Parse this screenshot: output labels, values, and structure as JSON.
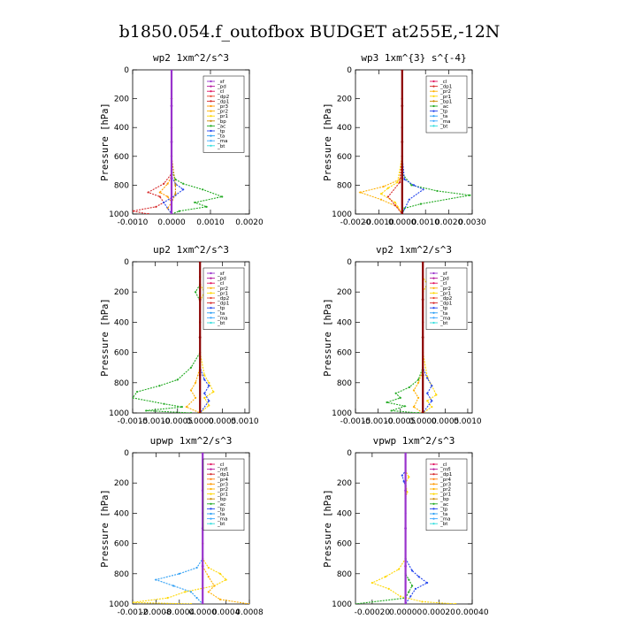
{
  "figure": {
    "title": "b1850.054.f_outofbox  BUDGET at255E,-12N"
  },
  "colors": {
    "sf": "#9933cc",
    "pd": "#b5179e",
    "cl": "#e0115f",
    "mfl": "#b5179e",
    "dp1": "#d62728",
    "dp2": "#e8452c",
    "pr1": "#ffd700",
    "pr2": "#ffb000",
    "pr3": "#ff9900",
    "pr4": "#ff7f0e",
    "bp": "#cc8800",
    "ac": "#22aa22",
    "tp": "#2244ee",
    "ta": "#2a9df4",
    "ma": "#3fa9ff",
    "bt": "#33dddd",
    "mean": "#8b0000"
  },
  "chart_data": [
    {
      "type": "line",
      "title": "wp2   1xm^2/s^3",
      "ylabel": "Pressure [hPa]",
      "ylim": [
        1000,
        0
      ],
      "xlim": [
        -0.001,
        0.002
      ],
      "xticks": [
        -0.001,
        0.0,
        0.001,
        0.002
      ],
      "xtick_labels": [
        "-0.0010",
        "0.0000",
        "0.0010",
        "0.0020"
      ],
      "yticks": [
        0,
        200,
        400,
        600,
        800,
        1000
      ],
      "ytick_labels": [
        "0",
        "200",
        "400",
        "600",
        "800",
        "1000"
      ],
      "legend": [
        "_sf",
        "_pd",
        "_cl",
        "_dp2",
        "_dp1",
        "_pr3",
        "_pr2",
        "_pr1",
        "_bp",
        "_ac",
        "_tp",
        "_ta",
        "_ma",
        "_bt"
      ],
      "legend_placement": "top-right",
      "series": [
        {
          "name": "_ac",
          "color": "ac",
          "x": [
            0,
            0,
            0,
            0,
            0,
            0.0001,
            0.0003,
            0.0008,
            0.0013,
            0.0006,
            0.0009,
            0.0002,
            0
          ],
          "y": [
            0,
            200,
            400,
            600,
            700,
            760,
            790,
            830,
            880,
            920,
            950,
            980,
            1000
          ]
        },
        {
          "name": "_dp1",
          "color": "dp1",
          "x": [
            0,
            0,
            0,
            0,
            0,
            -0.0002,
            -0.0006,
            -0.0003,
            -0.0002,
            -0.0004,
            -0.001,
            -0.0006
          ],
          "y": [
            0,
            200,
            400,
            600,
            720,
            790,
            850,
            880,
            920,
            950,
            980,
            1000
          ]
        },
        {
          "name": "_pr3",
          "color": "pr3",
          "x": [
            0,
            0,
            0,
            0,
            0,
            -0.0001,
            -0.0003,
            -0.0001,
            0,
            -0.0001,
            0
          ],
          "y": [
            0,
            200,
            400,
            600,
            740,
            790,
            850,
            880,
            920,
            960,
            1000
          ]
        },
        {
          "name": "_tp",
          "color": "tp",
          "x": [
            0,
            0,
            0,
            0,
            0,
            0.0001,
            0.0003,
            0.0001,
            -0.0002,
            0
          ],
          "y": [
            0,
            200,
            400,
            600,
            740,
            790,
            830,
            870,
            920,
            1000
          ]
        },
        {
          "name": "_bp",
          "color": "bp",
          "x": [
            0,
            0,
            0,
            0,
            0.0001,
            0.0001,
            0,
            0
          ],
          "y": [
            0,
            200,
            400,
            600,
            800,
            860,
            920,
            1000
          ]
        },
        {
          "name": "_sf",
          "color": "sf",
          "x": [
            0,
            0,
            0,
            0,
            0
          ],
          "y": [
            0,
            250,
            500,
            750,
            1000
          ]
        }
      ]
    },
    {
      "type": "line",
      "title": "wp3   1xm^{3} s^{-4}",
      "ylabel": "Pressure [hPa]",
      "ylim": [
        1000,
        0
      ],
      "xlim": [
        -0.002,
        0.003
      ],
      "xticks": [
        -0.002,
        -0.001,
        0.0,
        0.001,
        0.002,
        0.003
      ],
      "xtick_labels": [
        "-0.0020",
        "-0.0010",
        "0.0000",
        "0.0010",
        "0.0020",
        "0.0030"
      ],
      "yticks": [
        0,
        200,
        400,
        600,
        800,
        1000
      ],
      "ytick_labels": [
        "0",
        "200",
        "400",
        "600",
        "800",
        "1000"
      ],
      "legend": [
        "_cl",
        "_dp1",
        "_pr2",
        "_pr1",
        "_bp1",
        "_ac",
        "_tp",
        "_ta",
        "_ma",
        "_bt"
      ],
      "legend_placement": "top-right",
      "series": [
        {
          "name": "_ac",
          "color": "ac",
          "x": [
            0,
            0,
            0,
            0,
            0,
            0.0004,
            0.0015,
            0.0029,
            0.0008,
            0.0001,
            0
          ],
          "y": [
            0,
            200,
            400,
            600,
            720,
            800,
            840,
            870,
            930,
            960,
            1000
          ]
        },
        {
          "name": "_pr2",
          "color": "pr2",
          "x": [
            0,
            0,
            0,
            0,
            -0.0001,
            -0.0008,
            -0.0018,
            -0.0009,
            -0.0002,
            0
          ],
          "y": [
            0,
            200,
            400,
            600,
            760,
            810,
            850,
            900,
            950,
            1000
          ]
        },
        {
          "name": "_pr1",
          "color": "pr1",
          "x": [
            0,
            0,
            0,
            0,
            -0.0002,
            -0.0006,
            -0.0009,
            -0.0003,
            0
          ],
          "y": [
            0,
            200,
            400,
            600,
            780,
            820,
            860,
            920,
            1000
          ]
        },
        {
          "name": "_tp",
          "color": "tp",
          "x": [
            0,
            0,
            0,
            0,
            0.0001,
            0.0005,
            0.0009,
            0.0003,
            0
          ],
          "y": [
            0,
            200,
            400,
            600,
            760,
            800,
            830,
            900,
            1000
          ]
        },
        {
          "name": "_dp1",
          "color": "dp1",
          "x": [
            0,
            0,
            0,
            0,
            -0.0001,
            -0.0006,
            -0.0003,
            0
          ],
          "y": [
            0,
            200,
            400,
            600,
            780,
            880,
            940,
            1000
          ]
        },
        {
          "name": "_cl",
          "color": "mean",
          "x": [
            0,
            0,
            0,
            0,
            0
          ],
          "y": [
            0,
            250,
            500,
            750,
            1000
          ]
        }
      ]
    },
    {
      "type": "line",
      "title": "up2   1xm^2/s^3",
      "ylabel": "Pressure [hPa]",
      "ylim": [
        1000,
        0
      ],
      "xlim": [
        -0.0015,
        0.0011
      ],
      "xticks": [
        -0.0015,
        -0.001,
        -0.0005,
        0.0,
        0.0005,
        0.001
      ],
      "xtick_labels": [
        "-0.0015",
        "-0.0010",
        "-0.0005",
        "0.0000",
        "0.0005",
        "0.0010"
      ],
      "yticks": [
        0,
        200,
        400,
        600,
        800,
        1000
      ],
      "ytick_labels": [
        "0",
        "200",
        "400",
        "600",
        "800",
        "1000"
      ],
      "legend": [
        "_sf",
        "_pd",
        "_cl",
        "_pr2",
        "_pr1",
        "_dp2",
        "_dp1",
        "_tp",
        "_ta",
        "_ma",
        "_bt"
      ],
      "legend_placement": "top-right",
      "series": [
        {
          "name": "_dp2",
          "color": "ac",
          "x": [
            0,
            0,
            0,
            -0.0001,
            0,
            0,
            0,
            -0.0002,
            -0.0005,
            -0.0009,
            -0.0014,
            -0.0015,
            -0.0008,
            -0.0004,
            -0.0012,
            -0.0002
          ],
          "y": [
            0,
            100,
            150,
            200,
            260,
            400,
            600,
            700,
            780,
            820,
            860,
            900,
            940,
            960,
            985,
            1000
          ]
        },
        {
          "name": "_pr1",
          "color": "pr1",
          "x": [
            0,
            0,
            0,
            0.0001,
            0,
            0,
            0,
            0.0001,
            0.0002,
            0.0003,
            0.0001,
            0.0002,
            0
          ],
          "y": [
            0,
            100,
            150,
            200,
            260,
            400,
            600,
            750,
            800,
            860,
            900,
            950,
            1000
          ]
        },
        {
          "name": "_tp",
          "color": "tp",
          "x": [
            0,
            0,
            0,
            0.0001,
            0.0002,
            0.0001,
            0.0002,
            0
          ],
          "y": [
            0,
            400,
            700,
            780,
            820,
            870,
            920,
            1000
          ]
        },
        {
          "name": "_pr2",
          "color": "pr2",
          "x": [
            0,
            0,
            0,
            -0.0001,
            -0.0002,
            -0.0001,
            -0.0003,
            0
          ],
          "y": [
            0,
            400,
            700,
            800,
            850,
            900,
            960,
            1000
          ]
        },
        {
          "name": "_sf",
          "color": "mean",
          "x": [
            0,
            0,
            0,
            0,
            0
          ],
          "y": [
            0,
            250,
            500,
            750,
            1000
          ]
        }
      ]
    },
    {
      "type": "line",
      "title": "vp2   1xm^2/s^3",
      "ylabel": "Pressure [hPa]",
      "ylim": [
        1000,
        0
      ],
      "xlim": [
        -0.0015,
        0.0011
      ],
      "xticks": [
        -0.0015,
        -0.001,
        -0.0005,
        0.0,
        0.0005,
        0.001
      ],
      "xtick_labels": [
        "-0.0015",
        "-0.0010",
        "-0.0005",
        "0.0000",
        "0.0005",
        "0.0010"
      ],
      "yticks": [
        0,
        200,
        400,
        600,
        800,
        1000
      ],
      "ytick_labels": [
        "0",
        "200",
        "400",
        "600",
        "800",
        "1000"
      ],
      "legend": [
        "_sf",
        "_pd",
        "_cl",
        "_pr2",
        "_pr1",
        "_dp2",
        "_dp1",
        "_tp",
        "_ta",
        "_ma",
        "_bt"
      ],
      "legend_placement": "top-right",
      "series": [
        {
          "name": "_dp2",
          "color": "ac",
          "x": [
            0,
            0,
            0,
            -0.0001,
            -0.0003,
            -0.0006,
            -0.0005,
            -0.0008,
            -0.0004,
            -0.0007,
            -0.0001
          ],
          "y": [
            0,
            400,
            700,
            780,
            830,
            870,
            900,
            930,
            955,
            985,
            1000
          ]
        },
        {
          "name": "_pr1",
          "color": "pr1",
          "x": [
            0,
            0,
            0.0001,
            0,
            0,
            0,
            0.0001,
            0.0002,
            0.0003,
            0.0001,
            0.0002,
            0
          ],
          "y": [
            0,
            100,
            150,
            200,
            300,
            600,
            760,
            820,
            880,
            920,
            960,
            1000
          ]
        },
        {
          "name": "_tp",
          "color": "tp",
          "x": [
            0,
            0,
            0,
            0.0001,
            0.0002,
            0.0001,
            0.0002,
            0
          ],
          "y": [
            0,
            400,
            700,
            770,
            820,
            870,
            920,
            1000
          ]
        },
        {
          "name": "_pr2",
          "color": "pr2",
          "x": [
            0,
            0,
            0,
            -0.0001,
            -0.0002,
            -0.0001,
            -0.0002,
            0
          ],
          "y": [
            0,
            400,
            720,
            800,
            850,
            900,
            960,
            1000
          ]
        },
        {
          "name": "_sf",
          "color": "mean",
          "x": [
            0,
            0,
            0,
            0,
            0
          ],
          "y": [
            0,
            250,
            500,
            750,
            1000
          ]
        }
      ]
    },
    {
      "type": "line",
      "title": "upwp   1xm^2/s^3",
      "ylabel": "Pressure [hPa]",
      "ylim": [
        1000,
        0
      ],
      "xlim": [
        -0.0012,
        0.0008
      ],
      "xticks": [
        -0.0012,
        -0.0008,
        -0.0004,
        0.0,
        0.0004,
        0.0008
      ],
      "xtick_labels": [
        "-0.0012",
        "-0.0008",
        "-0.0004",
        "0.0000",
        "0.0004",
        "0.0008"
      ],
      "yticks": [
        0,
        200,
        400,
        600,
        800,
        1000
      ],
      "ytick_labels": [
        "0",
        "200",
        "400",
        "600",
        "800",
        "1000"
      ],
      "legend": [
        "_cl",
        "_mfl",
        "_dp1",
        "_pr4",
        "_pr3",
        "_pr2",
        "_pr1",
        "_bp",
        "_ac",
        "_tp",
        "_ta",
        "_ma",
        "_bt"
      ],
      "legend_placement": "top-right",
      "series": [
        {
          "name": "_ta",
          "color": "ta",
          "x": [
            0,
            0,
            0,
            0,
            -0.0001,
            -0.0004,
            -0.0008,
            -0.0005,
            -0.0002,
            -0.0001,
            0
          ],
          "y": [
            0,
            400,
            600,
            700,
            760,
            800,
            840,
            880,
            920,
            960,
            1000
          ]
        },
        {
          "name": "_pr1",
          "color": "pr1",
          "x": [
            0,
            0,
            0,
            0,
            0.0001,
            0.0003,
            0.0004,
            0.0002,
            -0.0003,
            -0.0006,
            -0.0012,
            -0.0002
          ],
          "y": [
            0,
            400,
            600,
            700,
            760,
            800,
            840,
            880,
            920,
            960,
            990,
            1000
          ]
        },
        {
          "name": "_pr2",
          "color": "pr2",
          "x": [
            0,
            0,
            0,
            0.0001,
            0.0002,
            0.0001,
            0.0003,
            0.0008
          ],
          "y": [
            0,
            600,
            750,
            820,
            880,
            920,
            970,
            1000
          ]
        },
        {
          "name": "_cl",
          "color": "sf",
          "x": [
            0,
            0,
            0,
            0,
            0
          ],
          "y": [
            0,
            250,
            500,
            750,
            1000
          ]
        }
      ]
    },
    {
      "type": "line",
      "title": "vpwp   1xm^2/s^3",
      "ylabel": "Pressure [hPa]",
      "ylim": [
        1000,
        0
      ],
      "xlim": [
        -0.0003,
        0.0004
      ],
      "xticks": [
        -0.0002,
        0.0,
        0.0002,
        0.0004
      ],
      "xtick_labels": [
        "-0.00020",
        "0.00000",
        "0.00020",
        "0.00040"
      ],
      "yticks": [
        0,
        200,
        400,
        600,
        800,
        1000
      ],
      "ytick_labels": [
        "0",
        "200",
        "400",
        "600",
        "800",
        "1000"
      ],
      "legend": [
        "_cl",
        "_mfl",
        "_dp1",
        "_pr4",
        "_pr3",
        "_pr2",
        "_pr1",
        "_bp",
        "_ac",
        "_tp",
        "_ta",
        "_ma",
        "_bt"
      ],
      "legend_placement": "top-right",
      "series": [
        {
          "name": "_tp",
          "color": "tp",
          "x": [
            0,
            0,
            -2e-05,
            -1e-05,
            0,
            0,
            0,
            4e-05,
            8e-05,
            0.00013,
            6e-05,
            3e-05,
            0
          ],
          "y": [
            0,
            120,
            150,
            190,
            220,
            400,
            700,
            780,
            820,
            860,
            900,
            950,
            1000
          ]
        },
        {
          "name": "_pr1",
          "color": "pr1",
          "x": [
            0,
            0,
            2e-05,
            0,
            1e-05,
            0,
            0,
            -4e-05,
            -0.00012,
            -0.0002,
            -0.0001,
            -3e-05,
            0.0001,
            0.0003
          ],
          "y": [
            0,
            120,
            160,
            200,
            260,
            300,
            700,
            770,
            820,
            860,
            900,
            950,
            985,
            1000
          ]
        },
        {
          "name": "_ac",
          "color": "ac",
          "x": [
            0,
            0,
            0,
            2e-05,
            4e-05,
            2e-05,
            0,
            -0.0003
          ],
          "y": [
            0,
            700,
            800,
            840,
            880,
            920,
            960,
            1000
          ]
        },
        {
          "name": "_cl",
          "color": "sf",
          "x": [
            0,
            0,
            0,
            0,
            0
          ],
          "y": [
            0,
            250,
            500,
            750,
            1000
          ]
        }
      ]
    }
  ]
}
